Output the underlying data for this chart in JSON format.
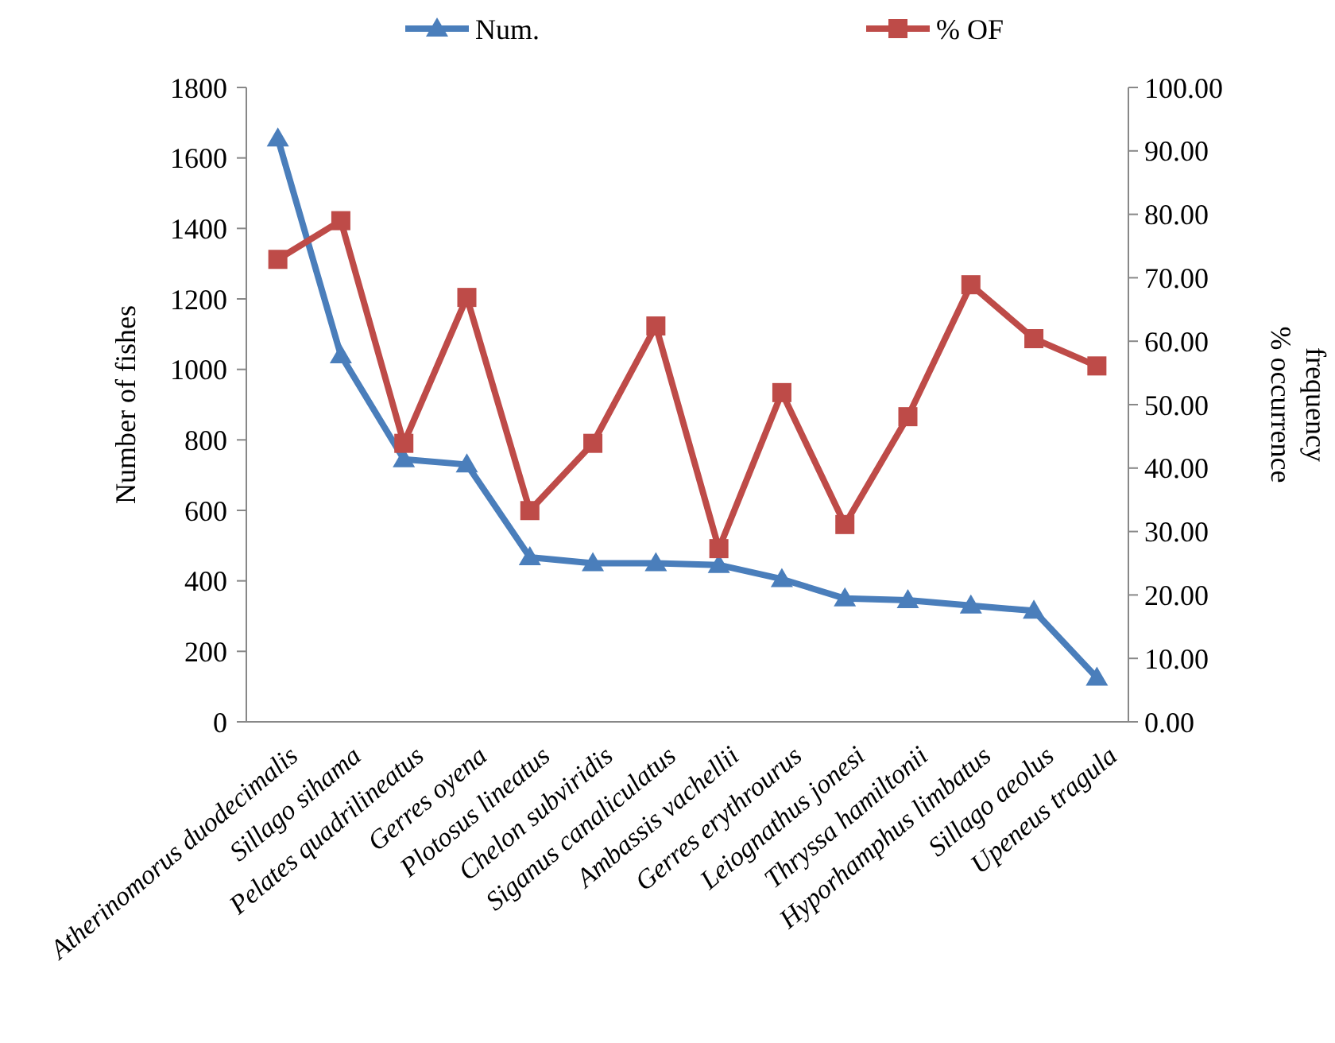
{
  "chart_data": {
    "type": "line",
    "ylabel": "Number of fishes",
    "y2label": "% occurrence frequency",
    "categories": [
      "Atherinomorus duodecimalis",
      "Sillago sihama",
      "Pelates quadrilineatus",
      "Gerres oyena",
      "Plotosus lineatus",
      "Chelon subviridis",
      "Siganus canaliculatus",
      "Ambassis vachellii",
      "Gerres erythrourus",
      "Leiognathus jonesi",
      "Thryssa hamiltonii",
      "Hyporhamphus  limbatus",
      "Sillago aeolus",
      "Upeneus tragula"
    ],
    "series": [
      {
        "name": "Num.",
        "color": "#4a7ebb",
        "marker": "triangle",
        "values": [
          1655,
          1040,
          745,
          730,
          467,
          450,
          450,
          445,
          405,
          350,
          345,
          330,
          315,
          125
        ]
      },
      {
        "name": "% OF",
        "color": "#be4b48",
        "marker": "square",
        "axis": "y2",
        "values": [
          72.9,
          79,
          43.9,
          66.9,
          33.3,
          43.9,
          62.4,
          27.3,
          51.9,
          31.1,
          48.1,
          68.9,
          60.4,
          56.1
        ]
      }
    ],
    "ylim": [
      0,
      1800
    ],
    "yticks": [
      0,
      200,
      400,
      600,
      800,
      1000,
      1200,
      1400,
      1600,
      1800
    ],
    "y2lim": [
      0,
      100
    ],
    "y2ticks": [
      {
        "value": 0,
        "label": "0.00"
      },
      {
        "value": 10,
        "label": "10.00"
      },
      {
        "value": 20,
        "label": "20.00"
      },
      {
        "value": 30,
        "label": "30.00"
      },
      {
        "value": 40,
        "label": "40.00"
      },
      {
        "value": 50,
        "label": "50.00"
      },
      {
        "value": 60,
        "label": "60.00"
      },
      {
        "value": 70,
        "label": "70.00"
      },
      {
        "value": 80,
        "label": "80.00"
      },
      {
        "value": 90,
        "label": "90.00"
      },
      {
        "value": 100,
        "label": "100.00"
      }
    ],
    "legend": "top",
    "grid": false
  }
}
